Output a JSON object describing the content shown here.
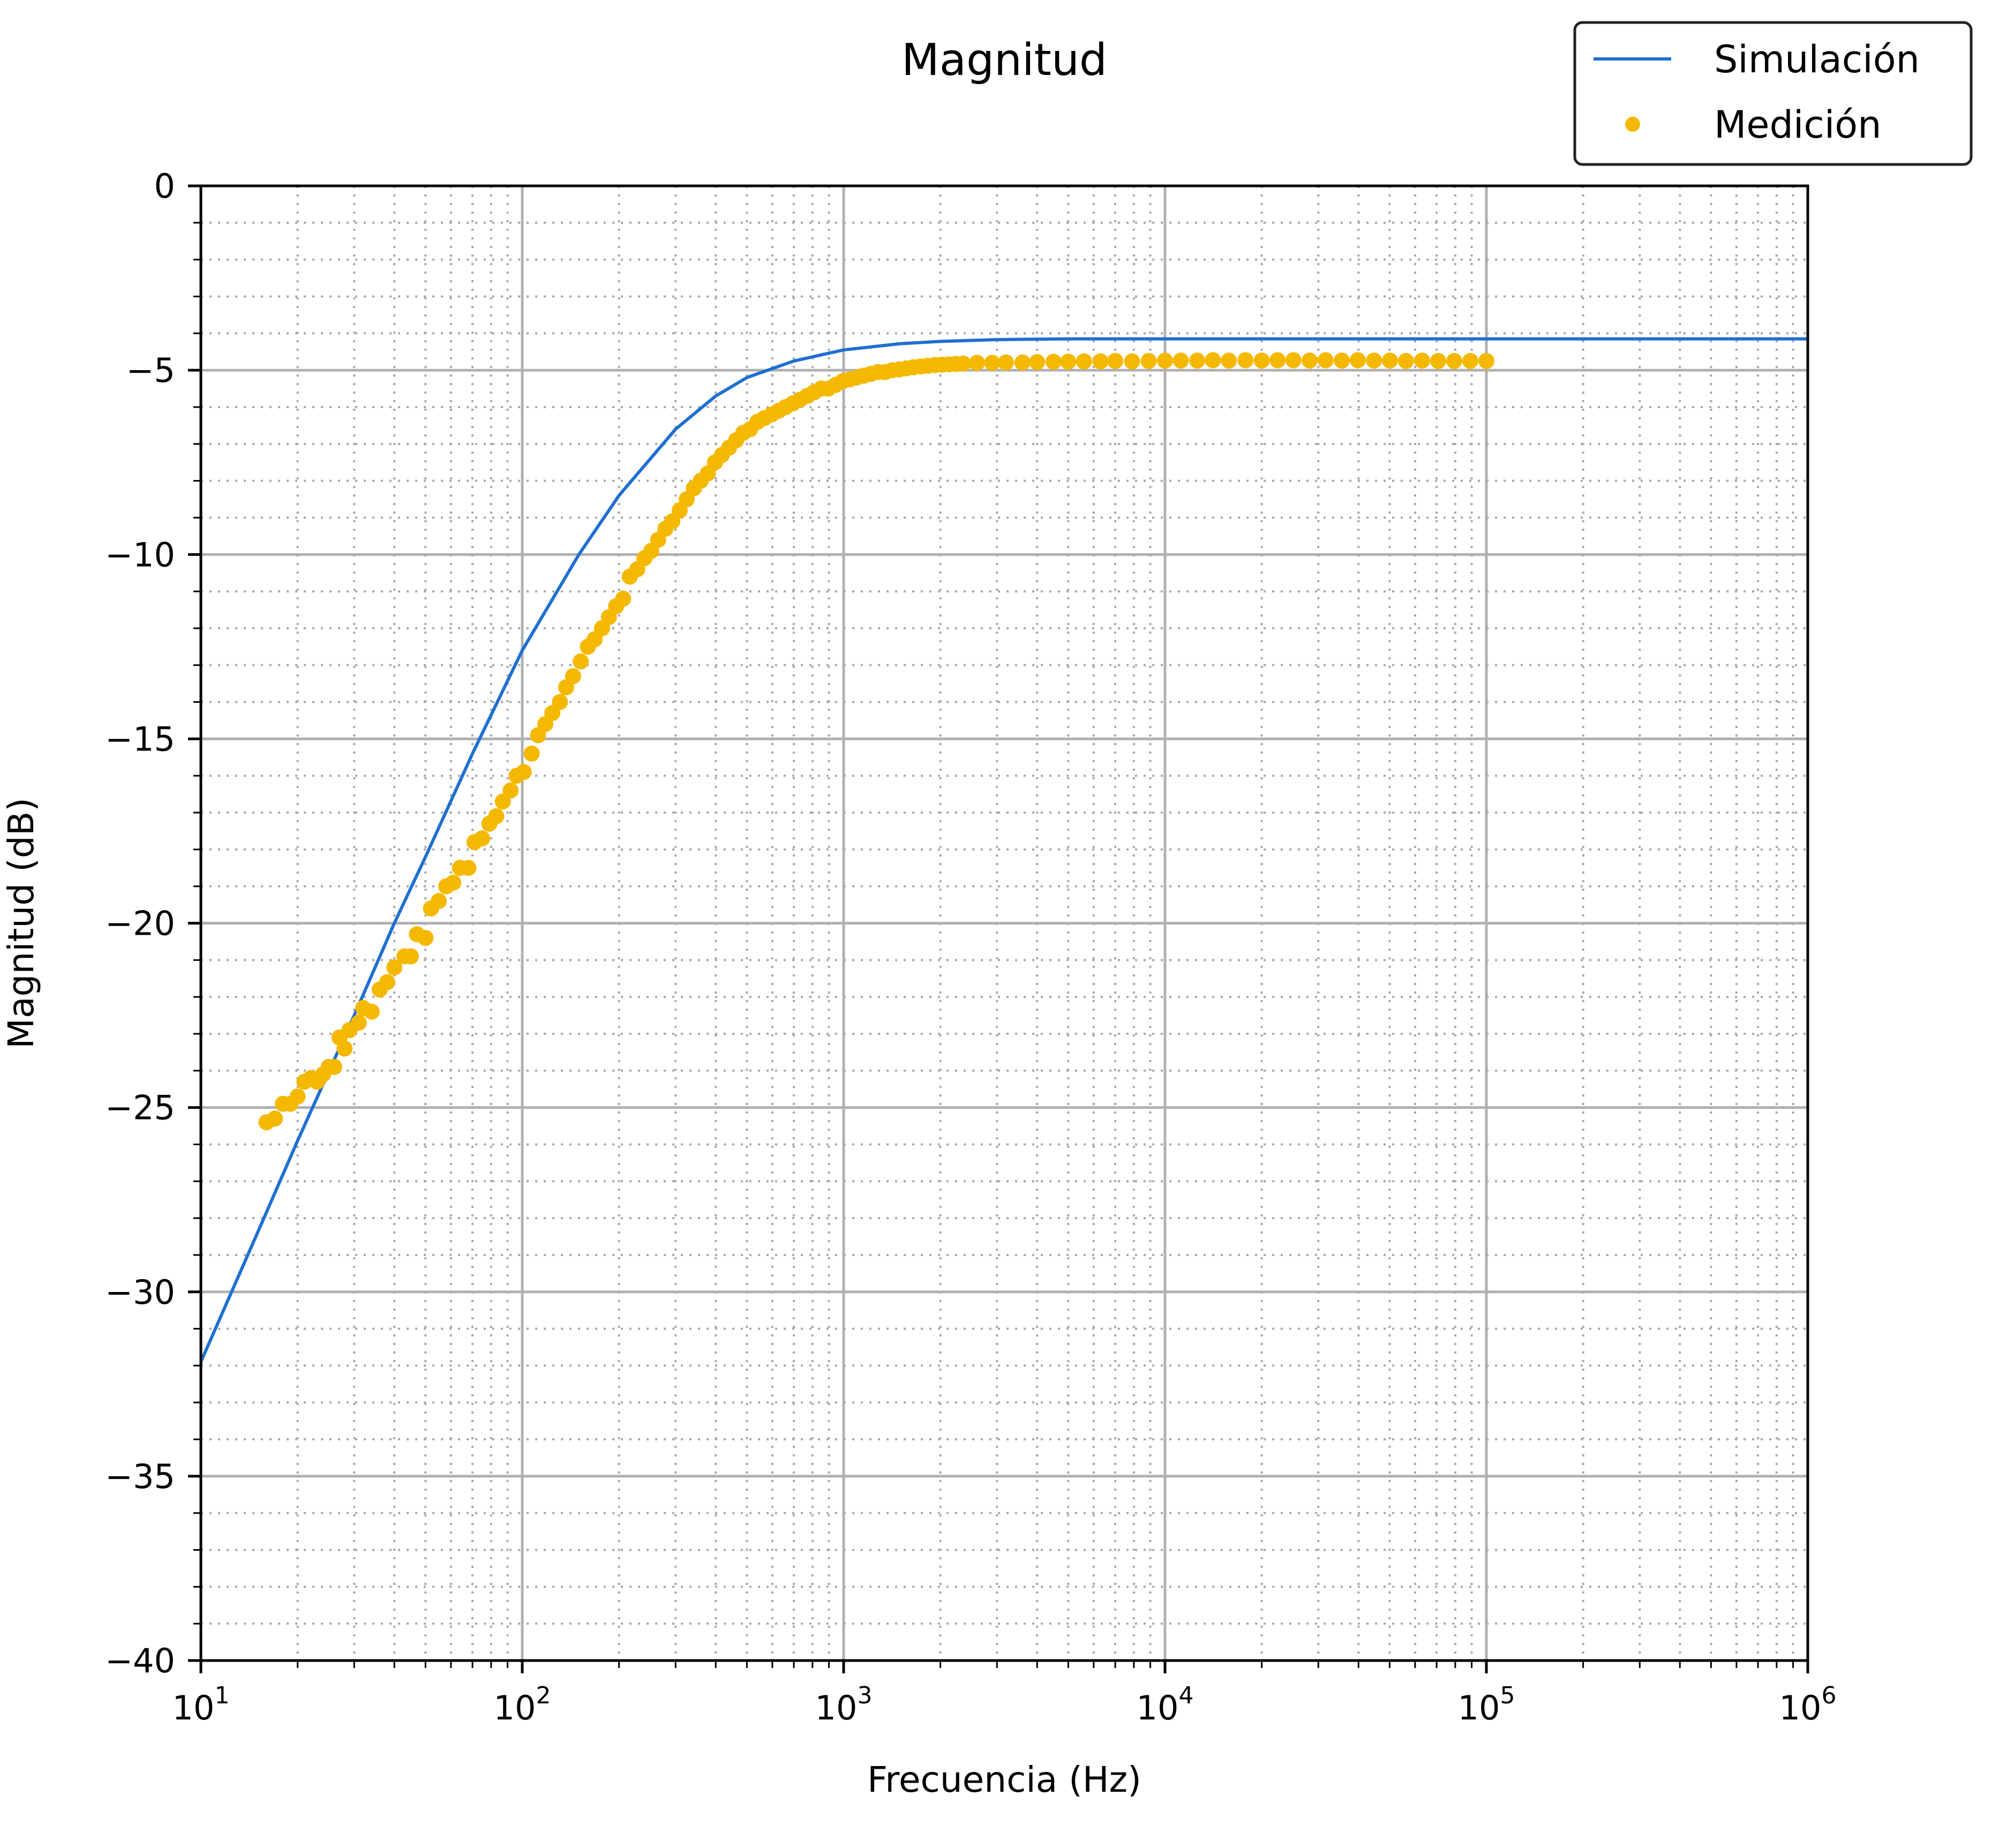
{
  "chart_data": {
    "type": "line",
    "title": "Magnitud",
    "xlabel": "Frecuencia (Hz)",
    "ylabel": "Magnitud (dB)",
    "x_scale": "log",
    "xlim": [
      10,
      1000000
    ],
    "ylim": [
      -40,
      0
    ],
    "x_ticks": [
      10,
      100,
      1000,
      10000,
      100000,
      1000000
    ],
    "x_tick_labels": [
      {
        "base": "10",
        "exp": "1"
      },
      {
        "base": "10",
        "exp": "2"
      },
      {
        "base": "10",
        "exp": "3"
      },
      {
        "base": "10",
        "exp": "4"
      },
      {
        "base": "10",
        "exp": "5"
      },
      {
        "base": "10",
        "exp": "6"
      }
    ],
    "y_ticks": [
      0,
      -5,
      -10,
      -15,
      -20,
      -25,
      -30,
      -35,
      -40
    ],
    "y_tick_labels": [
      "0",
      "−5",
      "−10",
      "−15",
      "−20",
      "−25",
      "−30",
      "−35",
      "−40"
    ],
    "grid": {
      "major": true,
      "minor": true,
      "minor_style": "dotted"
    },
    "legend_position": "top-right",
    "series": [
      {
        "name": "Simulación",
        "kind": "line",
        "color": "#1f6fd0",
        "points": [
          [
            10,
            -31.9
          ],
          [
            15,
            -28.4
          ],
          [
            20,
            -25.9
          ],
          [
            30,
            -22.5
          ],
          [
            40,
            -20.0
          ],
          [
            50,
            -18.2
          ],
          [
            70,
            -15.4
          ],
          [
            100,
            -12.6
          ],
          [
            150,
            -10.0
          ],
          [
            200,
            -8.4
          ],
          [
            300,
            -6.6
          ],
          [
            400,
            -5.7
          ],
          [
            500,
            -5.2
          ],
          [
            700,
            -4.75
          ],
          [
            1000,
            -4.45
          ],
          [
            1500,
            -4.28
          ],
          [
            2000,
            -4.22
          ],
          [
            3000,
            -4.17
          ],
          [
            5000,
            -4.15
          ],
          [
            10000,
            -4.15
          ],
          [
            100000,
            -4.15
          ],
          [
            1000000,
            -4.15
          ]
        ]
      },
      {
        "name": "Medición",
        "kind": "scatter",
        "color": "#f5b800",
        "points": [
          [
            16,
            -25.4
          ],
          [
            17,
            -25.3
          ],
          [
            18,
            -24.9
          ],
          [
            19,
            -24.9
          ],
          [
            20,
            -24.7
          ],
          [
            21,
            -24.3
          ],
          [
            22,
            -24.2
          ],
          [
            23,
            -24.3
          ],
          [
            24,
            -24.1
          ],
          [
            25,
            -23.9
          ],
          [
            26,
            -23.9
          ],
          [
            27,
            -23.1
          ],
          [
            28,
            -23.4
          ],
          [
            29,
            -22.9
          ],
          [
            31,
            -22.7
          ],
          [
            32,
            -22.3
          ],
          [
            34,
            -22.4
          ],
          [
            36,
            -21.8
          ],
          [
            38,
            -21.6
          ],
          [
            40,
            -21.2
          ],
          [
            43,
            -20.9
          ],
          [
            45,
            -20.9
          ],
          [
            47,
            -20.3
          ],
          [
            50,
            -20.4
          ],
          [
            52,
            -19.6
          ],
          [
            55,
            -19.4
          ],
          [
            58,
            -19.0
          ],
          [
            61,
            -18.9
          ],
          [
            64,
            -18.5
          ],
          [
            68,
            -18.5
          ],
          [
            71,
            -17.8
          ],
          [
            75,
            -17.7
          ],
          [
            79,
            -17.3
          ],
          [
            83,
            -17.1
          ],
          [
            87,
            -16.7
          ],
          [
            92,
            -16.4
          ],
          [
            96,
            -16.0
          ],
          [
            101,
            -15.9
          ],
          [
            107,
            -15.4
          ],
          [
            112,
            -14.9
          ],
          [
            118,
            -14.6
          ],
          [
            124,
            -14.3
          ],
          [
            131,
            -14.0
          ],
          [
            137,
            -13.6
          ],
          [
            144,
            -13.3
          ],
          [
            152,
            -12.9
          ],
          [
            160,
            -12.5
          ],
          [
            168,
            -12.3
          ],
          [
            177,
            -12.0
          ],
          [
            186,
            -11.7
          ],
          [
            196,
            -11.4
          ],
          [
            206,
            -11.2
          ],
          [
            216,
            -10.6
          ],
          [
            228,
            -10.4
          ],
          [
            240,
            -10.1
          ],
          [
            252,
            -9.9
          ],
          [
            265,
            -9.6
          ],
          [
            279,
            -9.3
          ],
          [
            293,
            -9.1
          ],
          [
            309,
            -8.8
          ],
          [
            325,
            -8.5
          ],
          [
            342,
            -8.2
          ],
          [
            359,
            -8.0
          ],
          [
            378,
            -7.8
          ],
          [
            398,
            -7.5
          ],
          [
            418,
            -7.3
          ],
          [
            440,
            -7.1
          ],
          [
            463,
            -6.9
          ],
          [
            487,
            -6.7
          ],
          [
            512,
            -6.6
          ],
          [
            539,
            -6.4
          ],
          [
            567,
            -6.3
          ],
          [
            597,
            -6.2
          ],
          [
            628,
            -6.1
          ],
          [
            660,
            -6.0
          ],
          [
            695,
            -5.9
          ],
          [
            731,
            -5.8
          ],
          [
            769,
            -5.7
          ],
          [
            809,
            -5.6
          ],
          [
            851,
            -5.5
          ],
          [
            896,
            -5.5
          ],
          [
            943,
            -5.4
          ],
          [
            992,
            -5.3
          ],
          [
            1044,
            -5.25
          ],
          [
            1098,
            -5.2
          ],
          [
            1155,
            -5.15
          ],
          [
            1216,
            -5.1
          ],
          [
            1279,
            -5.05
          ],
          [
            1346,
            -5.05
          ],
          [
            1416,
            -5.0
          ],
          [
            1490,
            -4.98
          ],
          [
            1568,
            -4.95
          ],
          [
            1650,
            -4.92
          ],
          [
            1736,
            -4.9
          ],
          [
            1826,
            -4.88
          ],
          [
            1922,
            -4.86
          ],
          [
            2022,
            -4.85
          ],
          [
            2128,
            -4.84
          ],
          [
            2239,
            -4.83
          ],
          [
            2356,
            -4.82
          ],
          [
            2600,
            -4.8
          ],
          [
            2900,
            -4.8
          ],
          [
            3200,
            -4.79
          ],
          [
            3600,
            -4.79
          ],
          [
            4000,
            -4.78
          ],
          [
            4500,
            -4.77
          ],
          [
            5000,
            -4.77
          ],
          [
            5600,
            -4.76
          ],
          [
            6300,
            -4.76
          ],
          [
            7000,
            -4.75
          ],
          [
            7900,
            -4.76
          ],
          [
            8900,
            -4.75
          ],
          [
            10000,
            -4.74
          ],
          [
            11200,
            -4.74
          ],
          [
            12600,
            -4.74
          ],
          [
            14100,
            -4.73
          ],
          [
            15800,
            -4.74
          ],
          [
            17800,
            -4.73
          ],
          [
            20000,
            -4.74
          ],
          [
            22400,
            -4.73
          ],
          [
            25100,
            -4.73
          ],
          [
            28200,
            -4.74
          ],
          [
            31600,
            -4.73
          ],
          [
            35500,
            -4.74
          ],
          [
            39800,
            -4.73
          ],
          [
            44700,
            -4.74
          ],
          [
            50100,
            -4.74
          ],
          [
            56200,
            -4.75
          ],
          [
            63100,
            -4.74
          ],
          [
            70800,
            -4.75
          ],
          [
            79400,
            -4.75
          ],
          [
            89100,
            -4.75
          ],
          [
            100000,
            -4.75
          ]
        ]
      }
    ]
  }
}
